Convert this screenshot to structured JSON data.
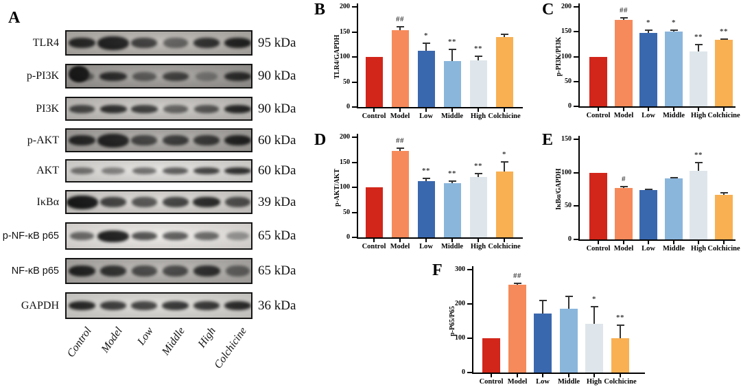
{
  "panelA": {
    "label": "A",
    "lanes": [
      "Control",
      "Model",
      "Low",
      "Middle",
      "High",
      "Colchicine"
    ],
    "blots": [
      {
        "protein": "TLR4",
        "kda": "95 kDa",
        "bg": "#b7b3ae",
        "bands": [
          0.92,
          1.0,
          0.85,
          0.62,
          0.9,
          0.95
        ]
      },
      {
        "protein": "p-PI3K",
        "kda": "90 kDa",
        "bg": "#9d9a96",
        "bands": [
          0.55,
          0.95,
          0.65,
          0.85,
          0.4,
          0.88
        ],
        "artifact": "dark-blob-top-left"
      },
      {
        "protein": "PI3K",
        "kda": "90 kDa",
        "bg": "#c7c4c0",
        "bands": [
          0.75,
          0.92,
          0.88,
          0.65,
          0.7,
          0.92
        ]
      },
      {
        "protein": "p-AKT",
        "kda": "60 kDa",
        "bg": "#a8a5a1",
        "bands": [
          0.92,
          1.0,
          0.82,
          0.88,
          0.85,
          0.95
        ]
      },
      {
        "protein": "AKT",
        "kda": "60 kDa",
        "bg": "#e2e0dd",
        "bands": [
          0.55,
          0.5,
          0.62,
          0.72,
          0.82,
          0.88
        ]
      },
      {
        "protein": "IκBα",
        "kda": "39 kDa",
        "bg": "#d9d6d2",
        "bands": [
          1.0,
          0.82,
          0.75,
          0.85,
          0.95,
          0.72
        ]
      },
      {
        "protein": "p-NF-κB p65",
        "kda": "65 kDa",
        "bg": "#ece9e6",
        "bands": [
          0.6,
          1.0,
          0.78,
          0.72,
          0.62,
          0.38
        ]
      },
      {
        "protein": "NF-κB p65",
        "kda": "65 kDa",
        "bg": "#b2afab",
        "bands": [
          0.95,
          0.9,
          0.78,
          0.78,
          0.92,
          0.55
        ]
      },
      {
        "protein": "GAPDH",
        "kda": "36 kDa",
        "bg": "#dcdad6",
        "bands": [
          0.92,
          0.85,
          0.85,
          0.92,
          0.88,
          0.9
        ]
      }
    ]
  },
  "colors": {
    "bar_palette": [
      "#D2261A",
      "#F68A5B",
      "#3A68AE",
      "#8AB6DC",
      "#DEE6EB",
      "#F9B052"
    ],
    "error_bar": "#333333",
    "axis": "#000000"
  },
  "chart_data": [
    {
      "panel": "B",
      "type": "bar",
      "ylabel": "TLR4/GAPDH",
      "ylim": [
        0,
        200
      ],
      "ystep": 50,
      "categories": [
        "Control",
        "Model",
        "Low",
        "Middle",
        "High",
        "Colchicine"
      ],
      "values": [
        100,
        154,
        113,
        92,
        93,
        140
      ],
      "errors": [
        0,
        8,
        16,
        24,
        10,
        6
      ],
      "sig": [
        "",
        "##",
        "*",
        "**",
        "**",
        ""
      ],
      "grid": false,
      "legend": "none"
    },
    {
      "panel": "C",
      "type": "bar",
      "ylabel": "p-PI3K/PI3K",
      "ylim": [
        0,
        200
      ],
      "ystep": 50,
      "categories": [
        "Control",
        "Model",
        "Low",
        "Middle",
        "High",
        "Colchicine"
      ],
      "values": [
        100,
        174,
        148,
        150,
        110,
        134
      ],
      "errors": [
        0,
        6,
        7,
        4,
        16,
        3
      ],
      "sig": [
        "",
        "##",
        "*",
        "*",
        "**",
        "**"
      ],
      "grid": false,
      "legend": "none"
    },
    {
      "panel": "D",
      "type": "bar",
      "ylabel": "p-AKT/AKT",
      "ylim": [
        0,
        200
      ],
      "ystep": 50,
      "categories": [
        "Control",
        "Model",
        "Low",
        "Middle",
        "High",
        "Colchicine"
      ],
      "values": [
        100,
        172,
        113,
        108,
        120,
        131
      ],
      "errors": [
        0,
        7,
        6,
        6,
        9,
        21
      ],
      "sig": [
        "",
        "##",
        "**",
        "**",
        "**",
        "*"
      ],
      "grid": false,
      "legend": "none"
    },
    {
      "panel": "E",
      "type": "bar",
      "ylabel": "IκBα/GAPDH",
      "ylim": [
        0,
        150
      ],
      "ystep": 50,
      "categories": [
        "Control",
        "Model",
        "Low",
        "Middle",
        "High",
        "Colchicine"
      ],
      "values": [
        100,
        77,
        74,
        91,
        103,
        67
      ],
      "errors": [
        0,
        3,
        2,
        3,
        13,
        4
      ],
      "sig": [
        "",
        "#",
        "",
        "",
        "**",
        ""
      ],
      "grid": false,
      "legend": "none"
    },
    {
      "panel": "F",
      "type": "bar",
      "ylabel": "p-P65/P65",
      "ylim": [
        0,
        300
      ],
      "ystep": 100,
      "categories": [
        "Control",
        "Model",
        "Low",
        "Middle",
        "High",
        "Colchicine"
      ],
      "values": [
        100,
        257,
        172,
        187,
        143,
        100
      ],
      "errors": [
        0,
        5,
        40,
        37,
        52,
        40
      ],
      "sig": [
        "",
        "##",
        "",
        "",
        "*",
        "**"
      ],
      "grid": false,
      "legend": "none"
    }
  ]
}
